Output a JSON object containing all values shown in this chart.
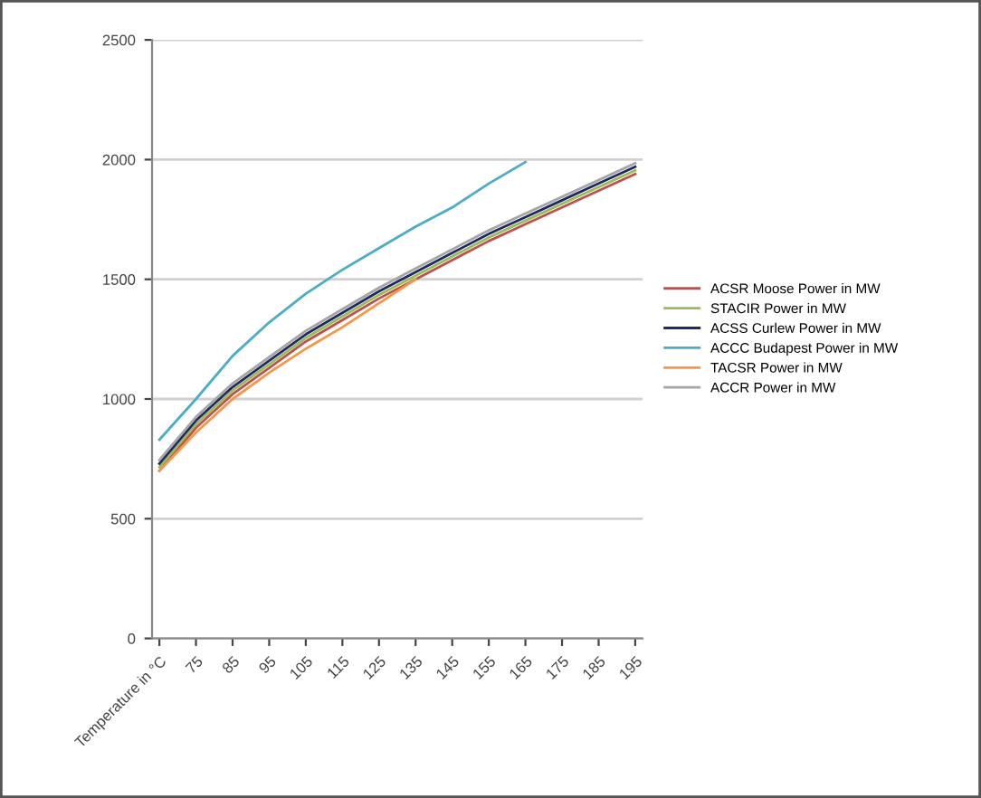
{
  "chart_data": {
    "type": "line",
    "categories": [
      "Temperature in °C",
      "75",
      "85",
      "95",
      "105",
      "115",
      "125",
      "135",
      "145",
      "155",
      "165",
      "175",
      "185",
      "195"
    ],
    "series": [
      {
        "name": "ACSR Moose Power in MW",
        "color": "#c0504d",
        "values": [
          700,
          880,
          1020,
          1130,
          1240,
          1330,
          1420,
          1500,
          1580,
          1660,
          1730,
          1800,
          1870,
          1940
        ]
      },
      {
        "name": "STACIR Power in MW",
        "color": "#9bbb59",
        "values": [
          715,
          895,
          1035,
          1145,
          1255,
          1345,
          1435,
          1515,
          1595,
          1675,
          1745,
          1815,
          1885,
          1955
        ]
      },
      {
        "name": "ACSS Curlew Power in MW",
        "color": "#1f2a60",
        "values": [
          730,
          910,
          1050,
          1160,
          1270,
          1360,
          1450,
          1530,
          1610,
          1690,
          1760,
          1830,
          1900,
          1970
        ]
      },
      {
        "name": "ACCC Budapest Power in MW",
        "color": "#4bacc6",
        "values": [
          830,
          1000,
          1180,
          1320,
          1440,
          1540,
          1630,
          1720,
          1800,
          1900,
          1990,
          null,
          null,
          null
        ]
      },
      {
        "name": "TACSR Power in MW",
        "color": "#f79646",
        "values": [
          700,
          860,
          1000,
          1110,
          1210,
          1300,
          1400,
          1500,
          null,
          null,
          null,
          null,
          null,
          null
        ]
      },
      {
        "name": "ACCR Power in MW",
        "color": "#a5a5a5",
        "values": [
          745,
          925,
          1065,
          1175,
          1285,
          1375,
          1465,
          1545,
          1625,
          1705,
          1775,
          1845,
          1915,
          1985
        ]
      }
    ],
    "ylim": [
      0,
      2500
    ],
    "yticks": [
      0,
      500,
      1000,
      1500,
      2000,
      2500
    ],
    "grid": "y",
    "legend": "right",
    "marker": "none",
    "line_style": "solid"
  }
}
